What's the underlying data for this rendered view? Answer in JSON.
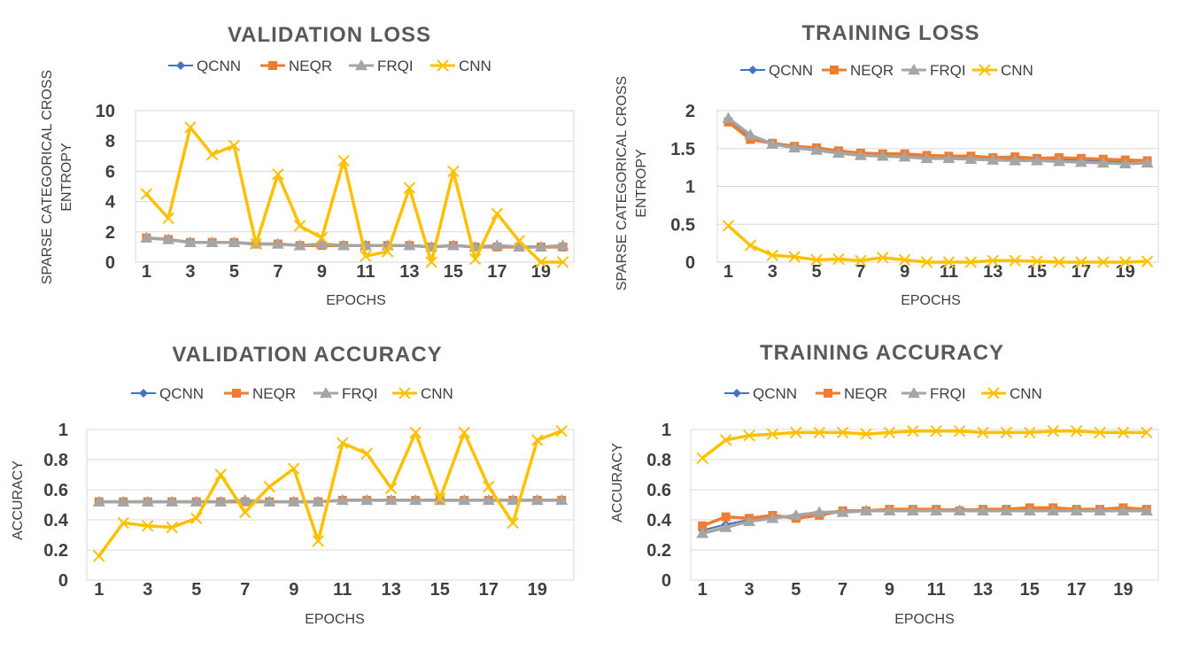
{
  "colors": {
    "QCNN": "#4472c4",
    "NEQR": "#ed7d31",
    "FRQI": "#a5a5a5",
    "CNN": "#ffc000"
  },
  "chart_data": [
    {
      "type": "line",
      "title": "VALIDATION LOSS",
      "xlabel": "EPOCHS",
      "ylabel_lines": [
        "SPARSE CATEGORICAL CROSS",
        "ENTROPY"
      ],
      "x": [
        1,
        2,
        3,
        4,
        5,
        6,
        7,
        8,
        9,
        10,
        11,
        12,
        13,
        14,
        15,
        16,
        17,
        18,
        19,
        20
      ],
      "xtick_labels": [
        "1",
        "3",
        "5",
        "7",
        "9",
        "11",
        "13",
        "15",
        "17",
        "19"
      ],
      "ylim": [
        0,
        10
      ],
      "yticks": [
        0,
        2,
        4,
        6,
        8,
        10
      ],
      "ytick_labels": [
        "0",
        "2",
        "4",
        "6",
        "8",
        "10"
      ],
      "series": [
        {
          "name": "QCNN",
          "marker": "diamond",
          "values": [
            1.6,
            1.5,
            1.3,
            1.3,
            1.3,
            1.2,
            1.2,
            1.1,
            1.1,
            1.1,
            1.1,
            1.1,
            1.1,
            1.0,
            1.1,
            1.0,
            1.0,
            1.0,
            1.0,
            1.0
          ]
        },
        {
          "name": "NEQR",
          "marker": "square",
          "values": [
            1.6,
            1.5,
            1.3,
            1.3,
            1.3,
            1.2,
            1.2,
            1.1,
            1.1,
            1.1,
            1.1,
            1.1,
            1.1,
            1.0,
            1.1,
            1.0,
            1.0,
            1.0,
            1.0,
            1.0
          ]
        },
        {
          "name": "FRQI",
          "marker": "triangle",
          "values": [
            1.6,
            1.5,
            1.3,
            1.3,
            1.3,
            1.2,
            1.2,
            1.1,
            1.2,
            1.1,
            1.1,
            1.1,
            1.1,
            1.0,
            1.1,
            1.0,
            1.1,
            1.0,
            1.0,
            1.1
          ]
        },
        {
          "name": "CNN",
          "marker": "x",
          "values": [
            4.5,
            2.9,
            8.9,
            7.1,
            7.7,
            1.2,
            5.8,
            2.4,
            1.6,
            6.7,
            0.4,
            0.7,
            4.9,
            0.0,
            6.0,
            0.2,
            3.2,
            1.4,
            0.0,
            0.0
          ]
        }
      ]
    },
    {
      "type": "line",
      "title": "TRAINING LOSS",
      "xlabel": "EPOCHS",
      "ylabel_lines": [
        "SPARSE CATEGORICAL CROSS",
        "ENTROPY"
      ],
      "x": [
        1,
        2,
        3,
        4,
        5,
        6,
        7,
        8,
        9,
        10,
        11,
        12,
        13,
        14,
        15,
        16,
        17,
        18,
        19,
        20
      ],
      "xtick_labels": [
        "1",
        "3",
        "5",
        "7",
        "9",
        "11",
        "13",
        "15",
        "17",
        "19"
      ],
      "ylim": [
        0,
        2
      ],
      "yticks": [
        0,
        0.5,
        1,
        1.5,
        2
      ],
      "ytick_labels": [
        "0",
        "0.5",
        "1",
        "1.5",
        "2"
      ],
      "series": [
        {
          "name": "QCNN",
          "marker": "diamond",
          "values": [
            1.88,
            1.65,
            1.56,
            1.52,
            1.49,
            1.45,
            1.42,
            1.41,
            1.4,
            1.38,
            1.38,
            1.37,
            1.36,
            1.36,
            1.35,
            1.35,
            1.34,
            1.33,
            1.32,
            1.32
          ]
        },
        {
          "name": "NEQR",
          "marker": "square",
          "values": [
            1.85,
            1.62,
            1.57,
            1.53,
            1.51,
            1.47,
            1.44,
            1.43,
            1.43,
            1.41,
            1.4,
            1.4,
            1.38,
            1.39,
            1.37,
            1.38,
            1.37,
            1.36,
            1.35,
            1.34
          ]
        },
        {
          "name": "FRQI",
          "marker": "triangle",
          "values": [
            1.9,
            1.68,
            1.56,
            1.51,
            1.48,
            1.44,
            1.41,
            1.4,
            1.39,
            1.37,
            1.37,
            1.36,
            1.35,
            1.34,
            1.34,
            1.33,
            1.32,
            1.31,
            1.3,
            1.31
          ]
        },
        {
          "name": "CNN",
          "marker": "x",
          "values": [
            0.48,
            0.22,
            0.09,
            0.07,
            0.03,
            0.04,
            0.02,
            0.06,
            0.03,
            0.0,
            0.0,
            0.0,
            0.02,
            0.02,
            0.01,
            0.0,
            0.0,
            0.0,
            0.0,
            0.01
          ]
        }
      ]
    },
    {
      "type": "line",
      "title": "VALIDATION ACCURACY",
      "xlabel": "EPOCHS",
      "ylabel_lines": [
        "ACCURACY"
      ],
      "x": [
        1,
        2,
        3,
        4,
        5,
        6,
        7,
        8,
        9,
        10,
        11,
        12,
        13,
        14,
        15,
        16,
        17,
        18,
        19,
        20
      ],
      "xtick_labels": [
        "1",
        "3",
        "5",
        "7",
        "9",
        "11",
        "13",
        "15",
        "17",
        "19"
      ],
      "ylim": [
        0,
        1
      ],
      "yticks": [
        0,
        0.2,
        0.4,
        0.6,
        0.8,
        1
      ],
      "ytick_labels": [
        "0",
        "0.2",
        "0.4",
        "0.6",
        "0.8",
        "1"
      ],
      "series": [
        {
          "name": "QCNN",
          "marker": "diamond",
          "values": [
            0.52,
            0.52,
            0.52,
            0.52,
            0.52,
            0.52,
            0.52,
            0.52,
            0.52,
            0.52,
            0.53,
            0.53,
            0.53,
            0.53,
            0.53,
            0.53,
            0.53,
            0.53,
            0.53,
            0.53
          ]
        },
        {
          "name": "NEQR",
          "marker": "square",
          "values": [
            0.52,
            0.52,
            0.52,
            0.52,
            0.52,
            0.52,
            0.52,
            0.52,
            0.52,
            0.52,
            0.53,
            0.53,
            0.53,
            0.53,
            0.53,
            0.53,
            0.53,
            0.53,
            0.53,
            0.53
          ]
        },
        {
          "name": "FRQI",
          "marker": "triangle",
          "values": [
            0.52,
            0.52,
            0.52,
            0.52,
            0.52,
            0.52,
            0.53,
            0.52,
            0.52,
            0.52,
            0.53,
            0.53,
            0.53,
            0.53,
            0.53,
            0.53,
            0.53,
            0.53,
            0.53,
            0.53
          ]
        },
        {
          "name": "CNN",
          "marker": "x",
          "values": [
            0.16,
            0.38,
            0.36,
            0.35,
            0.41,
            0.7,
            0.45,
            0.62,
            0.74,
            0.26,
            0.91,
            0.84,
            0.61,
            0.98,
            0.54,
            0.98,
            0.62,
            0.38,
            0.93,
            0.99
          ]
        }
      ]
    },
    {
      "type": "line",
      "title": "TRAINING ACCURACY",
      "xlabel": "EPOCHS",
      "ylabel_lines": [
        "ACCURACY"
      ],
      "x": [
        1,
        2,
        3,
        4,
        5,
        6,
        7,
        8,
        9,
        10,
        11,
        12,
        13,
        14,
        15,
        16,
        17,
        18,
        19,
        20
      ],
      "xtick_labels": [
        "1",
        "3",
        "5",
        "7",
        "9",
        "11",
        "13",
        "15",
        "17",
        "19"
      ],
      "ylim": [
        0,
        1
      ],
      "yticks": [
        0,
        0.2,
        0.4,
        0.6,
        0.8,
        1
      ],
      "ytick_labels": [
        "0",
        "0.2",
        "0.4",
        "0.6",
        "0.8",
        "1"
      ],
      "series": [
        {
          "name": "QCNN",
          "marker": "diamond",
          "values": [
            0.33,
            0.37,
            0.4,
            0.42,
            0.43,
            0.45,
            0.46,
            0.46,
            0.46,
            0.47,
            0.47,
            0.47,
            0.47,
            0.47,
            0.47,
            0.47,
            0.47,
            0.47,
            0.47,
            0.47
          ]
        },
        {
          "name": "NEQR",
          "marker": "square",
          "values": [
            0.36,
            0.42,
            0.41,
            0.43,
            0.41,
            0.43,
            0.46,
            0.46,
            0.47,
            0.47,
            0.47,
            0.46,
            0.47,
            0.47,
            0.48,
            0.48,
            0.47,
            0.47,
            0.48,
            0.47
          ]
        },
        {
          "name": "FRQI",
          "marker": "triangle",
          "values": [
            0.31,
            0.35,
            0.39,
            0.41,
            0.43,
            0.45,
            0.45,
            0.46,
            0.46,
            0.46,
            0.46,
            0.46,
            0.46,
            0.46,
            0.46,
            0.46,
            0.46,
            0.46,
            0.46,
            0.46
          ]
        },
        {
          "name": "CNN",
          "marker": "x",
          "values": [
            0.81,
            0.93,
            0.96,
            0.97,
            0.98,
            0.98,
            0.98,
            0.97,
            0.98,
            0.99,
            0.99,
            0.99,
            0.98,
            0.98,
            0.98,
            0.99,
            0.99,
            0.98,
            0.98,
            0.98
          ]
        }
      ]
    }
  ]
}
